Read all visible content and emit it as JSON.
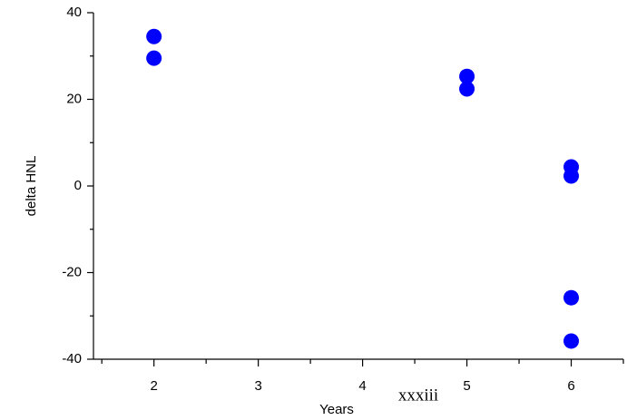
{
  "chart_data": {
    "type": "scatter",
    "x_label": "Years",
    "y_label": "delta HNL",
    "annotation": "xxxiii",
    "x": [
      2,
      2,
      5,
      5,
      6,
      6,
      6,
      6
    ],
    "y": [
      34.5,
      29.5,
      25.3,
      22.4,
      4.4,
      2.3,
      -25.8,
      -35.8
    ],
    "color": "#0000ff",
    "xlim": [
      1.42,
      6.5
    ],
    "xticks": [
      2,
      3,
      4,
      5,
      6
    ],
    "xminor_ticks": [
      1.5,
      2.5,
      3.5,
      4.5,
      5.5,
      6.5
    ],
    "ylim": [
      -40,
      40
    ],
    "yticks": [
      -40,
      -20,
      0,
      20,
      40
    ],
    "yminor_ticks": [
      -30,
      -10,
      10,
      30
    ],
    "grid": false
  }
}
